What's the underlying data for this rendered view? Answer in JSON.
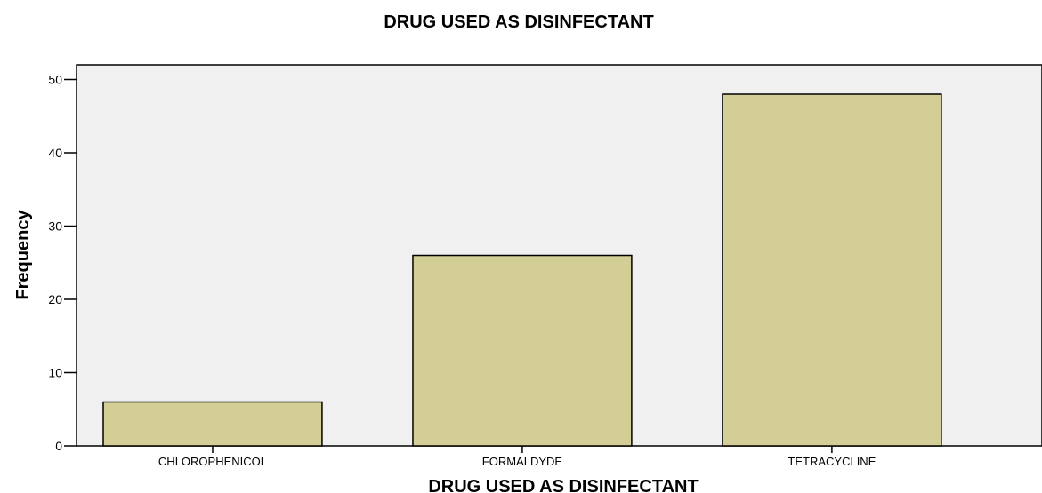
{
  "chart_data": {
    "type": "bar",
    "title": "DRUG USED AS DISINFECTANT",
    "xlabel": "DRUG USED AS DISINFECTANT",
    "ylabel": "Frequency",
    "categories": [
      "CHLOROPHENICOL",
      "FORMALDYDE",
      "TETRACYCLINE"
    ],
    "values": [
      6,
      26,
      48
    ],
    "ylim": [
      0,
      52
    ],
    "yticks": [
      0,
      10,
      20,
      30,
      40,
      50
    ],
    "grid": false,
    "colors": {
      "bar_fill": "#d3cd96",
      "bar_stroke": "#000000",
      "plot_background": "#f0f0f0"
    }
  }
}
